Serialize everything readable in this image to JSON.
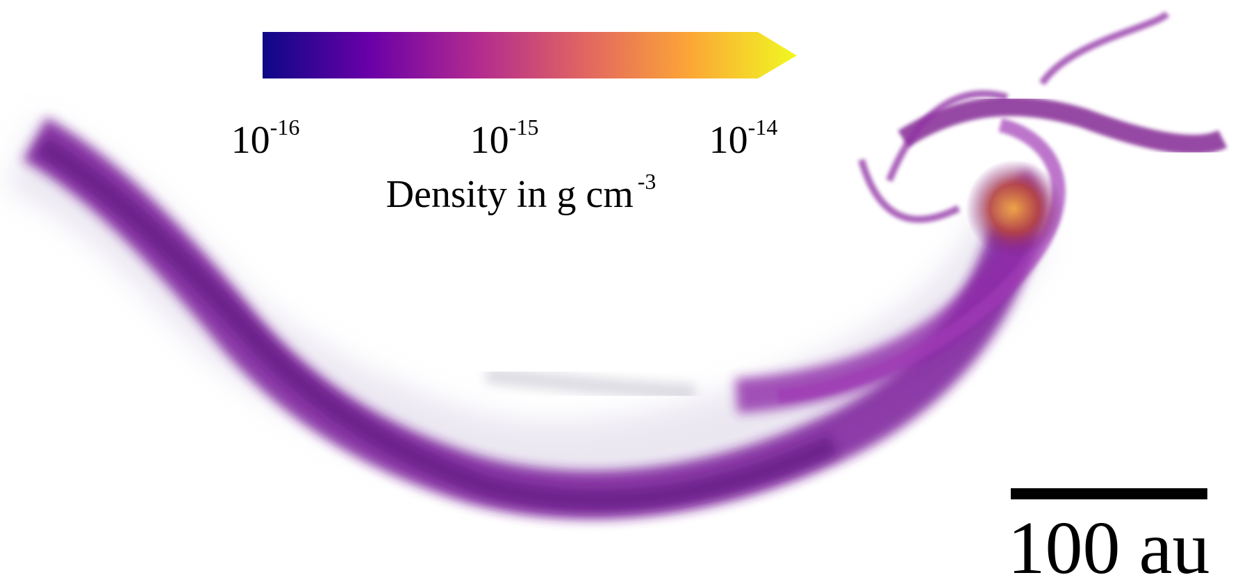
{
  "colorbar": {
    "lim": [
      -16,
      -14
    ],
    "ticks": [
      -16,
      -15,
      -14
    ],
    "tick_base": "10",
    "colors": [
      "#0d0887",
      "#6a00a8",
      "#b12a90",
      "#e16462",
      "#fca636",
      "#f0f921"
    ],
    "label": {
      "text": "Density in g cm",
      "superscript": "-3"
    }
  },
  "scale_bar": {
    "label": "100 au"
  }
}
